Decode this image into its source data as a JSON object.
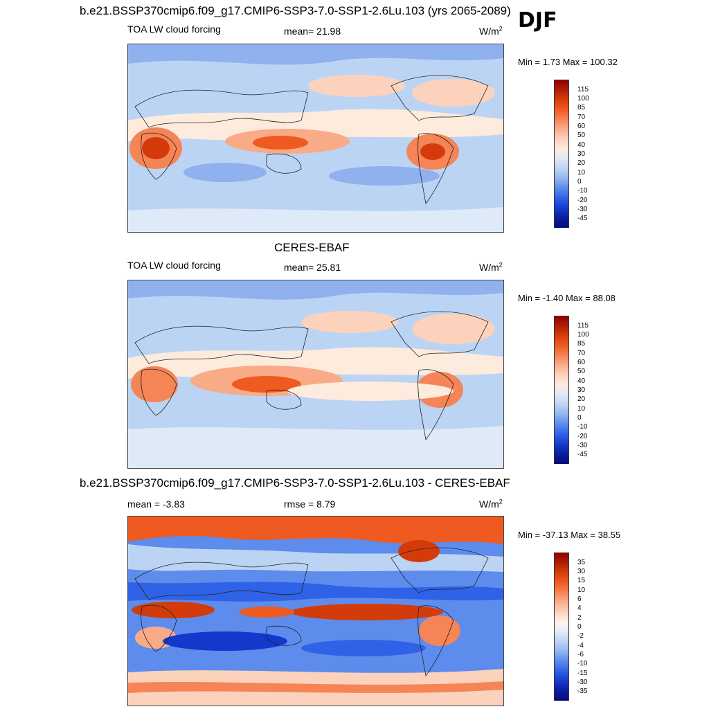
{
  "season": "DJF",
  "panels": [
    {
      "id": "model",
      "title": "b.e21.BSSP370cmip6.f09_g17.CMIP6-SSP3-7.0-SSP1-2.6Lu.103 (yrs 2065-2089)",
      "left_label": "TOA LW cloud forcing",
      "stat_label": "mean=  21.98",
      "units": "W/m",
      "units_sup": "2",
      "minmax": "Min =   1.73 Max = 100.32",
      "colorbar_ticks": [
        "115",
        "100",
        "85",
        "70",
        "60",
        "50",
        "40",
        "30",
        "20",
        "10",
        "0",
        "-10",
        "-20",
        "-30",
        "-45"
      ]
    },
    {
      "id": "obs",
      "title": "CERES-EBAF",
      "left_label": "TOA LW cloud forcing",
      "stat_label": "mean=  25.81",
      "units": "W/m",
      "units_sup": "2",
      "minmax": "Min =  -1.40 Max =  88.08",
      "colorbar_ticks": [
        "115",
        "100",
        "85",
        "70",
        "60",
        "50",
        "40",
        "30",
        "20",
        "10",
        "0",
        "-10",
        "-20",
        "-30",
        "-45"
      ]
    },
    {
      "id": "diff",
      "title": "b.e21.BSSP370cmip6.f09_g17.CMIP6-SSP3-7.0-SSP1-2.6Lu.103 - CERES-EBAF",
      "left_label": "mean =  -3.83",
      "stat_label": "rmse =   8.79",
      "units": "W/m",
      "units_sup": "2",
      "minmax": "Min = -37.13 Max =  38.55",
      "colorbar_ticks": [
        "35",
        "30",
        "15",
        "10",
        "6",
        "4",
        "2",
        "0",
        "-2",
        "-4",
        "-6",
        "-10",
        "-15",
        "-30",
        "-35"
      ]
    }
  ],
  "colors": {
    "abs_scale": [
      "#8b0000",
      "#b01e06",
      "#d43b0a",
      "#ef5a20",
      "#f58456",
      "#f9ab88",
      "#fcd2bc",
      "#fdebdd",
      "#dfeaf8",
      "#bcd4f4",
      "#8fb2ef",
      "#5d8cec",
      "#2f62e6",
      "#1538cc",
      "#0a1fa0",
      "#050a7a"
    ],
    "diff_scale": [
      "#8b0000",
      "#b01e06",
      "#d43b0a",
      "#ef5a20",
      "#f58456",
      "#f9ab88",
      "#fcd2bc",
      "#fdf3ea",
      "#e4edfa",
      "#bcd4f4",
      "#8fb2ef",
      "#5d8cec",
      "#2f62e6",
      "#1538cc",
      "#0a1fa0",
      "#050a7a"
    ]
  }
}
